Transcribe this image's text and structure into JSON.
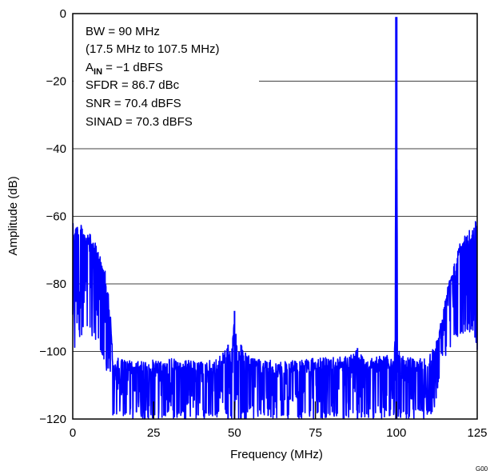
{
  "chart_data": {
    "type": "line",
    "title": "",
    "xlabel": "Frequency (MHz)",
    "ylabel": "Amplitude (dB)",
    "xlim": [
      0,
      125
    ],
    "ylim": [
      -120,
      0
    ],
    "xticks": [
      0,
      25,
      50,
      75,
      100,
      125
    ],
    "yticks": [
      0,
      -20,
      -40,
      -60,
      -80,
      -100,
      -120
    ],
    "xtick_labels": [
      "0",
      "25",
      "50",
      "75",
      "100",
      "125"
    ],
    "ytick_labels": [
      "0",
      "−20",
      "−40",
      "−60",
      "−80",
      "−100",
      "−120"
    ],
    "grid": "horizontal",
    "series_color": "#0000ff",
    "annotations": {
      "bw": "BW = 90 MHz",
      "range": "(17.5 MHz to 107.5 MHz)",
      "ain_prefix": "A",
      "ain_sub": "IN",
      "ain_value": " = −1 dBFS",
      "sfdr": "SFDR = 86.7 dBc",
      "snr": "SNR = 70.4 dBFS",
      "sinad": "SINAD = 70.3 dBFS"
    },
    "figure_id": "G00",
    "series": [
      {
        "envelope_max": [
          [
            0,
            -62
          ],
          [
            2,
            -62
          ],
          [
            4,
            -64
          ],
          [
            6,
            -66
          ],
          [
            8,
            -70
          ],
          [
            10,
            -76
          ],
          [
            11.5,
            -86
          ],
          [
            12.5,
            -104
          ],
          [
            14,
            -102
          ],
          [
            20,
            -103
          ],
          [
            30,
            -102
          ],
          [
            40,
            -103
          ],
          [
            45,
            -102
          ],
          [
            48,
            -98
          ],
          [
            49,
            -101
          ],
          [
            50,
            -88
          ],
          [
            51,
            -101
          ],
          [
            52,
            -98
          ],
          [
            55,
            -102
          ],
          [
            65,
            -103
          ],
          [
            75,
            -102
          ],
          [
            85,
            -101
          ],
          [
            88,
            -99
          ],
          [
            90,
            -102
          ],
          [
            99,
            -101
          ],
          [
            99.6,
            -95
          ],
          [
            100,
            -1
          ],
          [
            100.4,
            -95
          ],
          [
            101,
            -101
          ],
          [
            106,
            -102
          ],
          [
            110,
            -101
          ],
          [
            112,
            -98
          ],
          [
            114,
            -90
          ],
          [
            116,
            -80
          ],
          [
            118,
            -72
          ],
          [
            120,
            -66
          ],
          [
            122,
            -64
          ],
          [
            124,
            -62
          ],
          [
            125,
            -60
          ]
        ],
        "envelope_min": [
          [
            0,
            -101
          ],
          [
            2,
            -96
          ],
          [
            4,
            -94
          ],
          [
            6,
            -96
          ],
          [
            8,
            -99
          ],
          [
            10,
            -104
          ],
          [
            11.5,
            -110
          ],
          [
            12.5,
            -120
          ],
          [
            14,
            -120
          ],
          [
            30,
            -120
          ],
          [
            50,
            -120
          ],
          [
            75,
            -120
          ],
          [
            100,
            -120
          ],
          [
            110,
            -120
          ],
          [
            112,
            -118
          ],
          [
            113,
            -110
          ],
          [
            114,
            -104
          ],
          [
            116,
            -100
          ],
          [
            118,
            -97
          ],
          [
            120,
            -95
          ],
          [
            122,
            -94
          ],
          [
            124,
            -96
          ],
          [
            125,
            -101
          ]
        ]
      }
    ]
  }
}
